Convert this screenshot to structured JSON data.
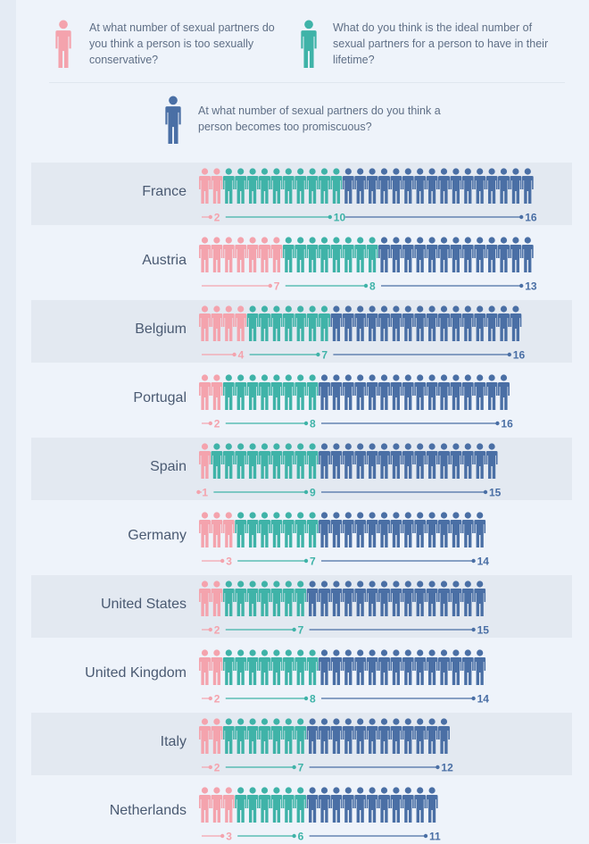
{
  "legend": [
    {
      "key": "conservative",
      "text": "At what number of sexual partners do you think a person is too sexually conservative?",
      "color": "#f4a3ad"
    },
    {
      "key": "ideal",
      "text": "What do you think is the ideal number of sexual partners for a person to have in their lifetime?",
      "color": "#3fb3a8"
    },
    {
      "key": "promiscuous",
      "text": "At what number of sexual partners do you think a person becomes too promiscuous?",
      "color": "#4a6fa5"
    }
  ],
  "chart_data": {
    "type": "pictogram-bar",
    "icon": "person-icon",
    "series_colors": {
      "conservative": "#f4a3ad",
      "ideal": "#3fb3a8",
      "promiscuous": "#4a6fa5"
    },
    "categories": [
      "France",
      "Austria",
      "Belgium",
      "Portugal",
      "Spain",
      "Germany",
      "United States",
      "United Kingdom",
      "Italy",
      "Netherlands"
    ],
    "series": [
      {
        "key": "conservative",
        "values": [
          2,
          7,
          4,
          2,
          1,
          3,
          2,
          2,
          2,
          3
        ]
      },
      {
        "key": "ideal",
        "values": [
          10,
          8,
          7,
          8,
          9,
          7,
          7,
          8,
          7,
          6
        ]
      },
      {
        "key": "promiscuous",
        "values": [
          16,
          13,
          16,
          16,
          15,
          14,
          15,
          14,
          12,
          11
        ]
      }
    ]
  }
}
